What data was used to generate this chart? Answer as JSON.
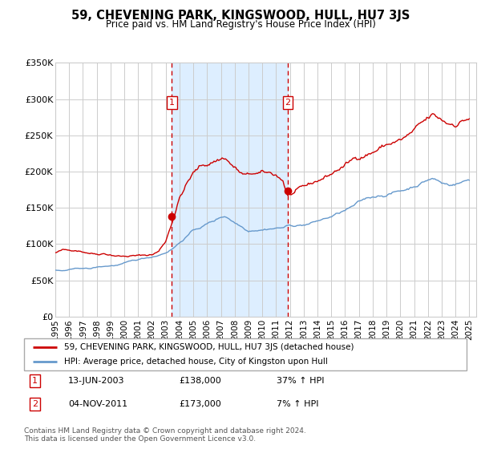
{
  "title": "59, CHEVENING PARK, KINGSWOOD, HULL, HU7 3JS",
  "subtitle": "Price paid vs. HM Land Registry's House Price Index (HPI)",
  "legend_line1": "59, CHEVENING PARK, KINGSWOOD, HULL, HU7 3JS (detached house)",
  "legend_line2": "HPI: Average price, detached house, City of Kingston upon Hull",
  "sale1_label": "1",
  "sale1_date": "13-JUN-2003",
  "sale1_price": 138000,
  "sale1_hpi_pct": "37% ↑ HPI",
  "sale2_label": "2",
  "sale2_date": "04-NOV-2011",
  "sale2_price": 173000,
  "sale2_hpi_pct": "7% ↑ HPI",
  "footer1": "Contains HM Land Registry data © Crown copyright and database right 2024.",
  "footer2": "This data is licensed under the Open Government Licence v3.0.",
  "ylim": [
    0,
    350000
  ],
  "yticks": [
    0,
    50000,
    100000,
    150000,
    200000,
    250000,
    300000,
    350000
  ],
  "ytick_labels": [
    "£0",
    "£50K",
    "£100K",
    "£150K",
    "£200K",
    "£250K",
    "£300K",
    "£350K"
  ],
  "xlim_start": 1995.0,
  "xlim_end": 2025.5,
  "sale1_x": 2003.45,
  "sale2_x": 2011.84,
  "red_color": "#cc0000",
  "blue_color": "#6699cc",
  "shade_color": "#ddeeff",
  "grid_color": "#cccccc",
  "xtick_years": [
    1995,
    1996,
    1997,
    1998,
    1999,
    2000,
    2001,
    2002,
    2003,
    2004,
    2005,
    2006,
    2007,
    2008,
    2009,
    2010,
    2011,
    2012,
    2013,
    2014,
    2015,
    2016,
    2017,
    2018,
    2019,
    2020,
    2021,
    2022,
    2023,
    2024,
    2025
  ]
}
